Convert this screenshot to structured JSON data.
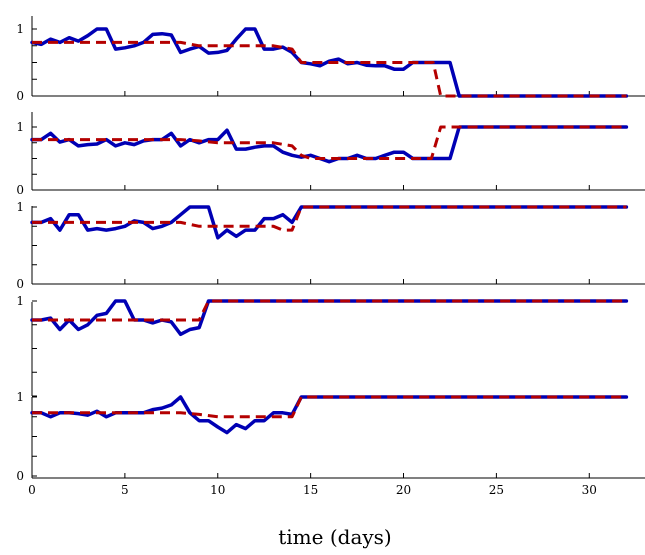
{
  "chart_data": {
    "type": "line",
    "xlabel": "time (days)",
    "xlim": [
      0,
      33
    ],
    "xticks": [
      0,
      5,
      10,
      15,
      20,
      25,
      30
    ],
    "colors": {
      "solid": "#0000b4",
      "dashed": "#b40000"
    },
    "panels": [
      {
        "ylim": [
          0,
          1
        ],
        "yticks": [
          0,
          1
        ],
        "series": [
          {
            "style": "solid",
            "x": [
              0,
              0.5,
              1,
              1.5,
              2,
              2.5,
              3,
              3.5,
              4,
              4.5,
              5,
              5.5,
              6,
              6.5,
              7,
              7.5,
              8,
              8.5,
              9,
              9.5,
              10,
              10.5,
              11,
              11.5,
              12,
              12.5,
              13,
              13.5,
              14,
              14.5,
              15,
              15.5,
              16,
              16.5,
              17,
              17.5,
              18,
              18.5,
              19,
              19.5,
              20,
              20.5,
              21,
              21.5,
              22,
              22.5,
              23,
              23.5,
              32
            ],
            "y": [
              0.8,
              0.77,
              0.85,
              0.8,
              0.87,
              0.82,
              0.9,
              1.0,
              1.0,
              0.7,
              0.72,
              0.75,
              0.8,
              0.92,
              0.93,
              0.91,
              0.65,
              0.7,
              0.74,
              0.64,
              0.65,
              0.68,
              0.85,
              1.0,
              1.0,
              0.7,
              0.7,
              0.73,
              0.65,
              0.5,
              0.48,
              0.45,
              0.52,
              0.55,
              0.48,
              0.5,
              0.46,
              0.45,
              0.45,
              0.4,
              0.4,
              0.5,
              0.5,
              0.5,
              0.5,
              0.5,
              0,
              0,
              0
            ]
          },
          {
            "style": "dashed",
            "x": [
              0,
              1,
              2,
              3,
              4,
              5,
              6,
              7,
              8,
              9,
              10,
              11,
              12,
              13,
              14,
              14.5,
              15,
              16,
              17,
              18,
              19,
              20,
              21,
              21.6,
              22,
              22.5,
              32
            ],
            "y": [
              0.8,
              0.8,
              0.8,
              0.8,
              0.8,
              0.8,
              0.8,
              0.8,
              0.8,
              0.75,
              0.75,
              0.75,
              0.75,
              0.75,
              0.7,
              0.5,
              0.5,
              0.5,
              0.5,
              0.5,
              0.5,
              0.5,
              0.5,
              0.5,
              0,
              0,
              0
            ]
          }
        ]
      },
      {
        "ylim": [
          0,
          1
        ],
        "yticks": [
          0,
          1
        ],
        "series": [
          {
            "style": "solid",
            "x": [
              0,
              0.5,
              1,
              1.5,
              2,
              2.5,
              3,
              3.5,
              4,
              4.5,
              5,
              5.5,
              6,
              6.5,
              7,
              7.5,
              8,
              8.5,
              9,
              9.5,
              10,
              10.5,
              11,
              11.5,
              12,
              12.5,
              13,
              13.5,
              14,
              14.5,
              15,
              15.5,
              16,
              16.5,
              17,
              17.5,
              18,
              18.5,
              19,
              19.5,
              20,
              20.5,
              21,
              21.5,
              22,
              22.5,
              23,
              23.5,
              32
            ],
            "y": [
              0.8,
              0.8,
              0.9,
              0.76,
              0.8,
              0.7,
              0.72,
              0.73,
              0.8,
              0.7,
              0.75,
              0.72,
              0.78,
              0.8,
              0.8,
              0.9,
              0.7,
              0.8,
              0.75,
              0.8,
              0.8,
              0.95,
              0.65,
              0.65,
              0.68,
              0.7,
              0.7,
              0.6,
              0.55,
              0.52,
              0.55,
              0.5,
              0.45,
              0.5,
              0.5,
              0.55,
              0.5,
              0.5,
              0.55,
              0.6,
              0.6,
              0.5,
              0.5,
              0.5,
              0.5,
              0.5,
              1,
              1,
              1
            ]
          },
          {
            "style": "dashed",
            "x": [
              0,
              1,
              2,
              3,
              4,
              5,
              6,
              7,
              8,
              9,
              10,
              11,
              12,
              13,
              14,
              14.5,
              15,
              16,
              17,
              18,
              19,
              20,
              21,
              21.5,
              22,
              22.5,
              32
            ],
            "y": [
              0.8,
              0.8,
              0.8,
              0.8,
              0.8,
              0.8,
              0.8,
              0.8,
              0.8,
              0.78,
              0.75,
              0.75,
              0.75,
              0.75,
              0.7,
              0.55,
              0.5,
              0.5,
              0.5,
              0.5,
              0.5,
              0.5,
              0.5,
              0.5,
              1,
              1,
              1
            ]
          }
        ]
      },
      {
        "ylim": [
          0,
          1
        ],
        "yticks": [
          0,
          1
        ],
        "series": [
          {
            "style": "solid",
            "x": [
              0,
              0.5,
              1,
              1.5,
              2,
              2.5,
              3,
              3.5,
              4,
              4.5,
              5,
              5.5,
              6,
              6.5,
              7,
              7.5,
              8,
              8.5,
              9,
              9.5,
              10,
              10.5,
              11,
              11.5,
              12,
              12.5,
              13,
              13.5,
              14,
              14.5,
              32
            ],
            "y": [
              0.8,
              0.8,
              0.85,
              0.7,
              0.9,
              0.9,
              0.7,
              0.72,
              0.7,
              0.72,
              0.75,
              0.82,
              0.8,
              0.72,
              0.75,
              0.8,
              0.9,
              1.0,
              1.0,
              1.0,
              0.6,
              0.7,
              0.62,
              0.7,
              0.7,
              0.85,
              0.85,
              0.9,
              0.8,
              1.0,
              1.0
            ]
          },
          {
            "style": "dashed",
            "x": [
              0,
              1,
              2,
              3,
              4,
              5,
              6,
              7,
              8,
              9,
              10,
              11,
              12,
              13,
              13.5,
              14,
              14.5,
              32
            ],
            "y": [
              0.8,
              0.8,
              0.8,
              0.8,
              0.8,
              0.8,
              0.8,
              0.8,
              0.8,
              0.75,
              0.75,
              0.75,
              0.75,
              0.75,
              0.7,
              0.7,
              1.0,
              1.0
            ]
          }
        ]
      },
      {
        "ylim": [
          0,
          1
        ],
        "yticks": [
          1
        ],
        "series": [
          {
            "style": "solid",
            "x": [
              0,
              0.5,
              1,
              1.5,
              2,
              2.5,
              3,
              3.5,
              4,
              4.5,
              5,
              5.5,
              6,
              6.5,
              7,
              7.5,
              8,
              8.5,
              9,
              9.5,
              32
            ],
            "y": [
              0.8,
              0.8,
              0.82,
              0.7,
              0.8,
              0.7,
              0.75,
              0.85,
              0.87,
              1.0,
              1.0,
              0.8,
              0.8,
              0.77,
              0.8,
              0.78,
              0.65,
              0.7,
              0.72,
              1.0,
              1.0
            ]
          },
          {
            "style": "dashed",
            "x": [
              0,
              1,
              2,
              3,
              4,
              5,
              6,
              7,
              8,
              9,
              9.5,
              32
            ],
            "y": [
              0.8,
              0.8,
              0.8,
              0.8,
              0.8,
              0.8,
              0.8,
              0.8,
              0.8,
              0.8,
              1.0,
              1.0
            ]
          }
        ]
      },
      {
        "ylim": [
          0,
          1
        ],
        "yticks": [
          0,
          1
        ],
        "series": [
          {
            "style": "solid",
            "x": [
              0,
              0.5,
              1,
              1.5,
              2,
              2.5,
              3,
              3.5,
              4,
              4.5,
              5,
              5.5,
              6,
              6.5,
              7,
              7.5,
              8,
              8.5,
              9,
              9.5,
              10,
              10.5,
              11,
              11.5,
              12,
              12.5,
              13,
              13.5,
              14,
              14.5,
              32
            ],
            "y": [
              0.8,
              0.8,
              0.75,
              0.8,
              0.8,
              0.79,
              0.77,
              0.82,
              0.75,
              0.8,
              0.8,
              0.8,
              0.8,
              0.84,
              0.86,
              0.9,
              1.0,
              0.8,
              0.7,
              0.7,
              0.62,
              0.55,
              0.65,
              0.6,
              0.7,
              0.7,
              0.8,
              0.8,
              0.78,
              1.0,
              1.0
            ]
          },
          {
            "style": "dashed",
            "x": [
              0,
              1,
              2,
              3,
              4,
              5,
              6,
              7,
              8,
              9,
              10,
              11,
              12,
              13,
              14,
              14.5,
              32
            ],
            "y": [
              0.8,
              0.8,
              0.8,
              0.8,
              0.8,
              0.8,
              0.8,
              0.8,
              0.8,
              0.78,
              0.75,
              0.75,
              0.75,
              0.75,
              0.75,
              1.0,
              1.0
            ]
          }
        ]
      }
    ]
  }
}
